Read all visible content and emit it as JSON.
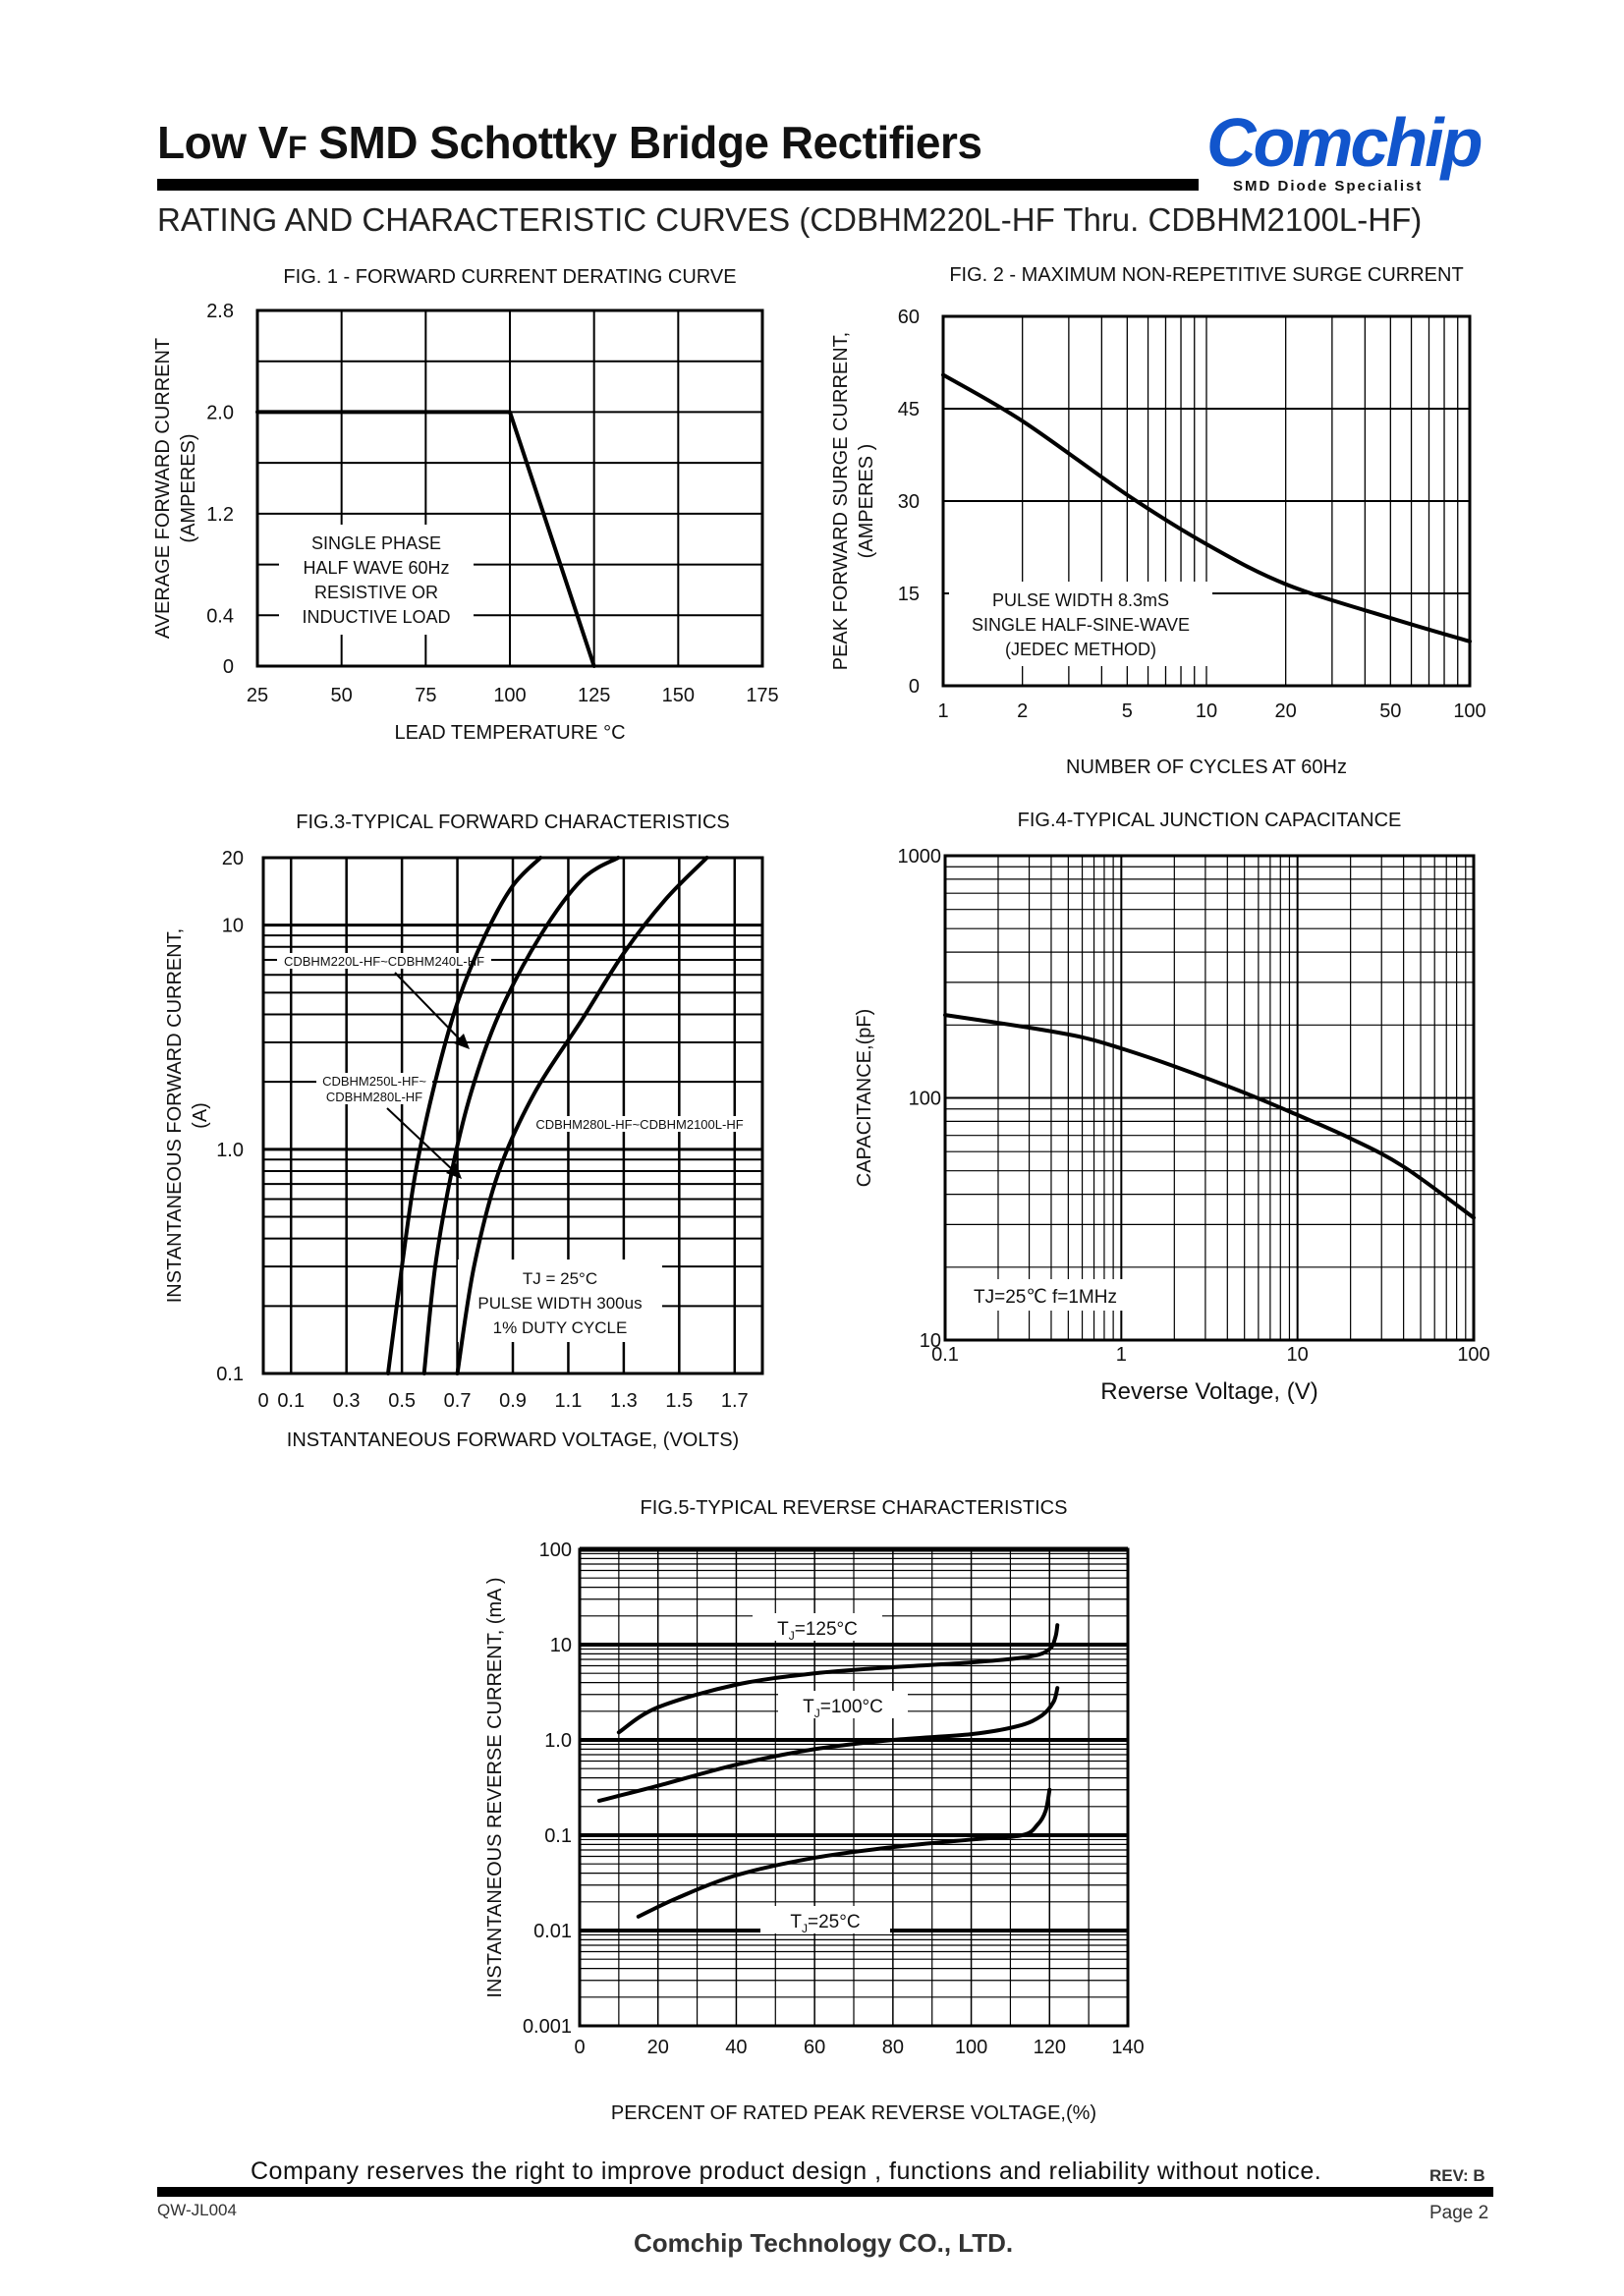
{
  "header": {
    "title_pre": "Low V",
    "title_small": "F",
    "title_post": " SMD Schottky Bridge Rectifiers",
    "logo": "Comchip",
    "logo_sub": "SMD Diode Specialist",
    "subtitle": "RATING AND CHARACTERISTIC CURVES (CDBHM220L-HF Thru. CDBHM2100L-HF)"
  },
  "footer": {
    "disclaimer": "Company reserves the right to improve product design , functions and reliability without notice.",
    "rev": "REV: B",
    "doc_no": "QW-JL004",
    "page": "Page 2",
    "company": "Comchip Technology CO., LTD."
  },
  "chart_data": [
    {
      "id": "fig1",
      "type": "line",
      "title": "FIG. 1 - FORWARD  CURRENT  DERATING  CURVE",
      "xlabel": "LEAD TEMPERATURE  °C",
      "ylabel_lines": [
        "AVERAGE FORWARD CURRENT",
        "(AMPERES)"
      ],
      "x_ticks": [
        "25",
        "50",
        "75",
        "100",
        "125",
        "150",
        "175"
      ],
      "y_ticks": [
        "0",
        "0.4",
        "1.2",
        "2.0",
        "2.8"
      ],
      "xlim": [
        25,
        175
      ],
      "ylim": [
        0,
        2.8
      ],
      "grid": true,
      "series": [
        {
          "x": [
            25,
            100,
            125
          ],
          "y": [
            2.0,
            2.0,
            0
          ]
        }
      ],
      "annotation_lines": [
        "SINGLE PHASE",
        "HALF WAVE 60Hz",
        "RESISTIVE OR",
        "INDUCTIVE LOAD"
      ]
    },
    {
      "id": "fig2",
      "type": "line",
      "title": "FIG. 2  - MAXIMUM NON-REPETITIVE SURGE CURRENT",
      "xlabel": "NUMBER OF CYCLES AT 60Hz",
      "ylabel_lines": [
        "PEAK FORWARD SURGE CURRENT,",
        "(AMPERES )"
      ],
      "x_scale": "log",
      "x_ticks": [
        "1",
        "2",
        "5",
        "10",
        "20",
        "50",
        "100"
      ],
      "y_ticks": [
        "0",
        "15",
        "30",
        "45",
        "60"
      ],
      "xlim": [
        1,
        100
      ],
      "ylim": [
        0,
        60
      ],
      "grid": true,
      "series": [
        {
          "x": [
            1,
            2,
            5,
            10,
            20,
            50,
            100
          ],
          "y": [
            50.5,
            43,
            31,
            23,
            16.5,
            11,
            7.2
          ]
        }
      ],
      "annotation_lines": [
        "PULSE WIDTH 8.3mS",
        "SINGLE HALF-SINE-WAVE",
        "(JEDEC METHOD)"
      ]
    },
    {
      "id": "fig3",
      "type": "line",
      "title": "FIG.3-TYPICAL FORWARD CHARACTERISTICS",
      "xlabel": "INSTANTANEOUS FORWARD VOLTAGE, (VOLTS)",
      "ylabel_lines": [
        "INSTANTANEOUS FORWARD CURRENT,",
        "(A)"
      ],
      "y_scale": "log",
      "x_ticks": [
        "0",
        "0.1",
        "0.3",
        "0.5",
        "0.7",
        "0.9",
        "1.1",
        "1.3",
        "1.5",
        "1.7"
      ],
      "y_ticks": [
        "0.1",
        "1.0",
        "10",
        "20"
      ],
      "xlim": [
        0,
        1.8
      ],
      "ylim": [
        0.1,
        20
      ],
      "grid": true,
      "series": [
        {
          "name": "CDBHM220L-HF~CDBHM240L-HF",
          "x": [
            0.45,
            0.5,
            0.55,
            0.62,
            0.7,
            0.8,
            0.9,
            1.0
          ],
          "y": [
            0.1,
            0.3,
            0.8,
            2,
            4.5,
            9,
            15,
            20
          ]
        },
        {
          "name": "CDBHM250L-HF~ CDBHM280L-HF",
          "x": [
            0.58,
            0.62,
            0.68,
            0.75,
            0.85,
            1.0,
            1.15,
            1.28
          ],
          "y": [
            0.1,
            0.3,
            0.8,
            1.8,
            4,
            9,
            16,
            20
          ]
        },
        {
          "name": "CDBHM280L-HF~CDBHM2100L-HF",
          "x": [
            0.7,
            0.76,
            0.85,
            0.98,
            1.15,
            1.3,
            1.45,
            1.6
          ],
          "y": [
            0.1,
            0.3,
            0.8,
            1.8,
            3.8,
            7.5,
            13,
            20
          ]
        }
      ],
      "annotation_lines": [
        "TJ =  25°C",
        "PULSE WIDTH 300us",
        "1% DUTY CYCLE"
      ]
    },
    {
      "id": "fig4",
      "type": "line",
      "title": "FIG.4-TYPICAL JUNCTION CAPACITANCE",
      "xlabel": "Reverse Voltage, (V)",
      "ylabel_lines": [
        "CAPACITANCE,(pF)"
      ],
      "x_scale": "log",
      "y_scale": "log",
      "x_ticks": [
        "0.1",
        "1",
        "10",
        "100"
      ],
      "y_ticks": [
        "10",
        "100",
        "1000"
      ],
      "xlim": [
        0.1,
        100
      ],
      "ylim": [
        10,
        1000
      ],
      "grid": true,
      "series": [
        {
          "x": [
            0.1,
            0.3,
            0.6,
            1,
            2,
            5,
            10,
            20,
            40,
            100
          ],
          "y": [
            220,
            195,
            178,
            160,
            135,
            105,
            85,
            68,
            52,
            32
          ]
        }
      ],
      "annotation_lines": [
        "TJ=25℃ f=1MHz"
      ]
    },
    {
      "id": "fig5",
      "type": "line",
      "title": "FIG.5-TYPICAL REVERSE CHARACTERISTICS",
      "xlabel": "PERCENT OF RATED PEAK REVERSE VOLTAGE,(%)",
      "ylabel_lines": [
        "INSTANTANEOUS REVERSE CURRENT, (mA )"
      ],
      "y_scale": "log",
      "x_ticks": [
        "0",
        "20",
        "40",
        "60",
        "80",
        "100",
        "120",
        "140"
      ],
      "y_ticks": [
        "0.001",
        "0.01",
        "0.1",
        "1.0",
        "10",
        "100"
      ],
      "xlim": [
        0,
        140
      ],
      "ylim": [
        0.001,
        100
      ],
      "grid": true,
      "series": [
        {
          "name": "TJ=125°C",
          "x": [
            10,
            20,
            40,
            60,
            80,
            100,
            115,
            120,
            121.5,
            122
          ],
          "y": [
            1.2,
            2.2,
            3.8,
            5,
            5.8,
            6.5,
            7.5,
            9,
            12,
            16
          ]
        },
        {
          "name": "TJ=100°C",
          "x": [
            5,
            20,
            40,
            60,
            80,
            100,
            112,
            118,
            121,
            122
          ],
          "y": [
            0.23,
            0.33,
            0.55,
            0.8,
            1.0,
            1.15,
            1.4,
            1.8,
            2.5,
            3.5
          ]
        },
        {
          "name": "TJ=25°C",
          "x": [
            15,
            25,
            40,
            60,
            80,
            100,
            113,
            117,
            119,
            120
          ],
          "y": [
            0.014,
            0.022,
            0.038,
            0.058,
            0.075,
            0.09,
            0.1,
            0.13,
            0.18,
            0.3
          ]
        }
      ],
      "annotation_labels": [
        {
          "main": "T",
          "sub": "J",
          "rest": "=125°C"
        },
        {
          "main": "T",
          "sub": "J",
          "rest": "=100°C"
        },
        {
          "main": "T",
          "sub": "J",
          "rest": "=25°C"
        }
      ]
    }
  ]
}
